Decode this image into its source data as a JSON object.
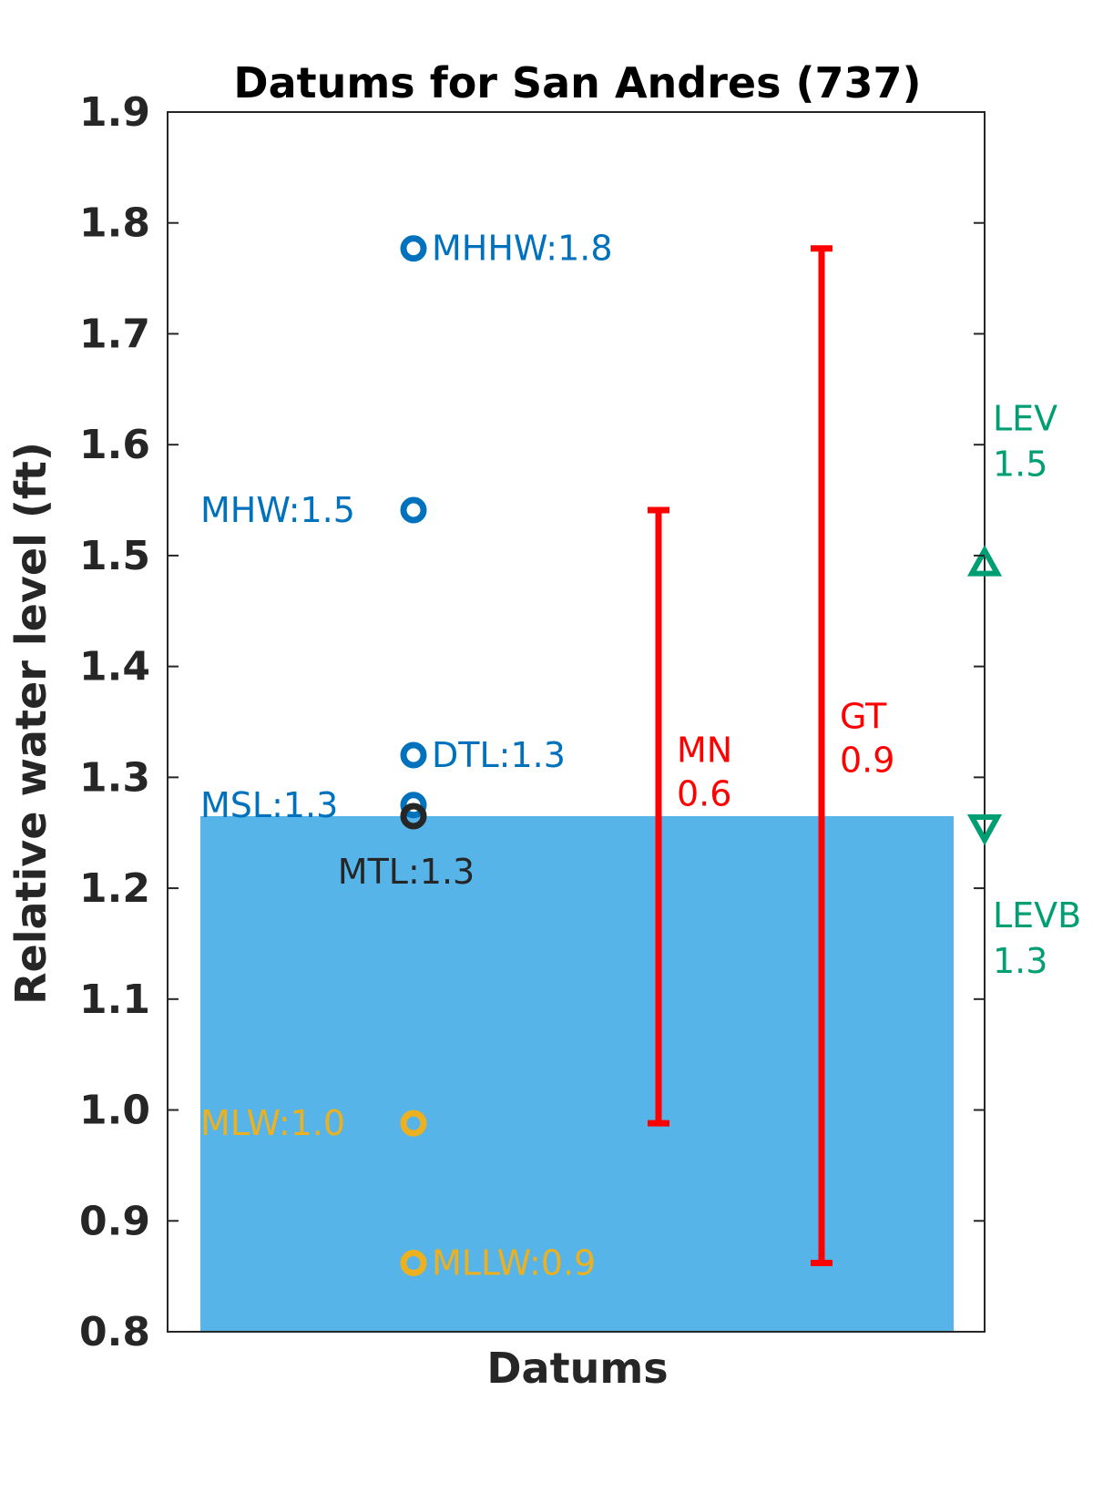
{
  "chart_data": {
    "type": "scatter",
    "title": "Datums for San Andres (737)",
    "xlabel": "Datums",
    "ylabel": "Relative water level (ft)",
    "ylim": [
      0.8,
      1.9
    ],
    "yticks": [
      "0.8",
      "0.9",
      "1.0",
      "1.1",
      "1.2",
      "1.3",
      "1.4",
      "1.5",
      "1.6",
      "1.7",
      "1.8",
      "1.9"
    ],
    "grid": false,
    "colors": {
      "blue": "#0072BD",
      "orange": "#EDB120",
      "dark": "#262626",
      "red": "#FF0000",
      "green": "#009E73",
      "fill": "#56B4E9"
    },
    "fill_level": 1.265,
    "datums": [
      {
        "label": "MHHW:1.8",
        "value": 1.777,
        "color": "#0072BD",
        "label_side": "right"
      },
      {
        "label": "MHW:1.5",
        "value": 1.541,
        "color": "#0072BD",
        "label_side": "left"
      },
      {
        "label": "DTL:1.3",
        "value": 1.32,
        "color": "#0072BD",
        "label_side": "right"
      },
      {
        "label": "MSL:1.3",
        "value": 1.275,
        "color": "#0072BD",
        "label_side": "left"
      },
      {
        "label": "MTL:1.3",
        "value": 1.265,
        "color": "#262626",
        "label_side": "below"
      },
      {
        "label": "MLW:1.0",
        "value": 0.988,
        "color": "#EDB120",
        "label_side": "left"
      },
      {
        "label": "MLLW:0.9",
        "value": 0.862,
        "color": "#EDB120",
        "label_side": "right"
      }
    ],
    "ranges": [
      {
        "name": "MN",
        "value_text": "0.6",
        "low": 0.988,
        "high": 1.541,
        "color": "#FF0000"
      },
      {
        "name": "GT",
        "value_text": "0.9",
        "low": 0.862,
        "high": 1.777,
        "color": "#FF0000"
      }
    ],
    "levels": [
      {
        "name": "LEV",
        "value_text": "1.5",
        "value": 1.493,
        "marker": "triangle-up",
        "color": "#009E73"
      },
      {
        "name": "LEVB",
        "value_text": "1.3",
        "value": 1.255,
        "marker": "triangle-down",
        "color": "#009E73"
      }
    ]
  }
}
